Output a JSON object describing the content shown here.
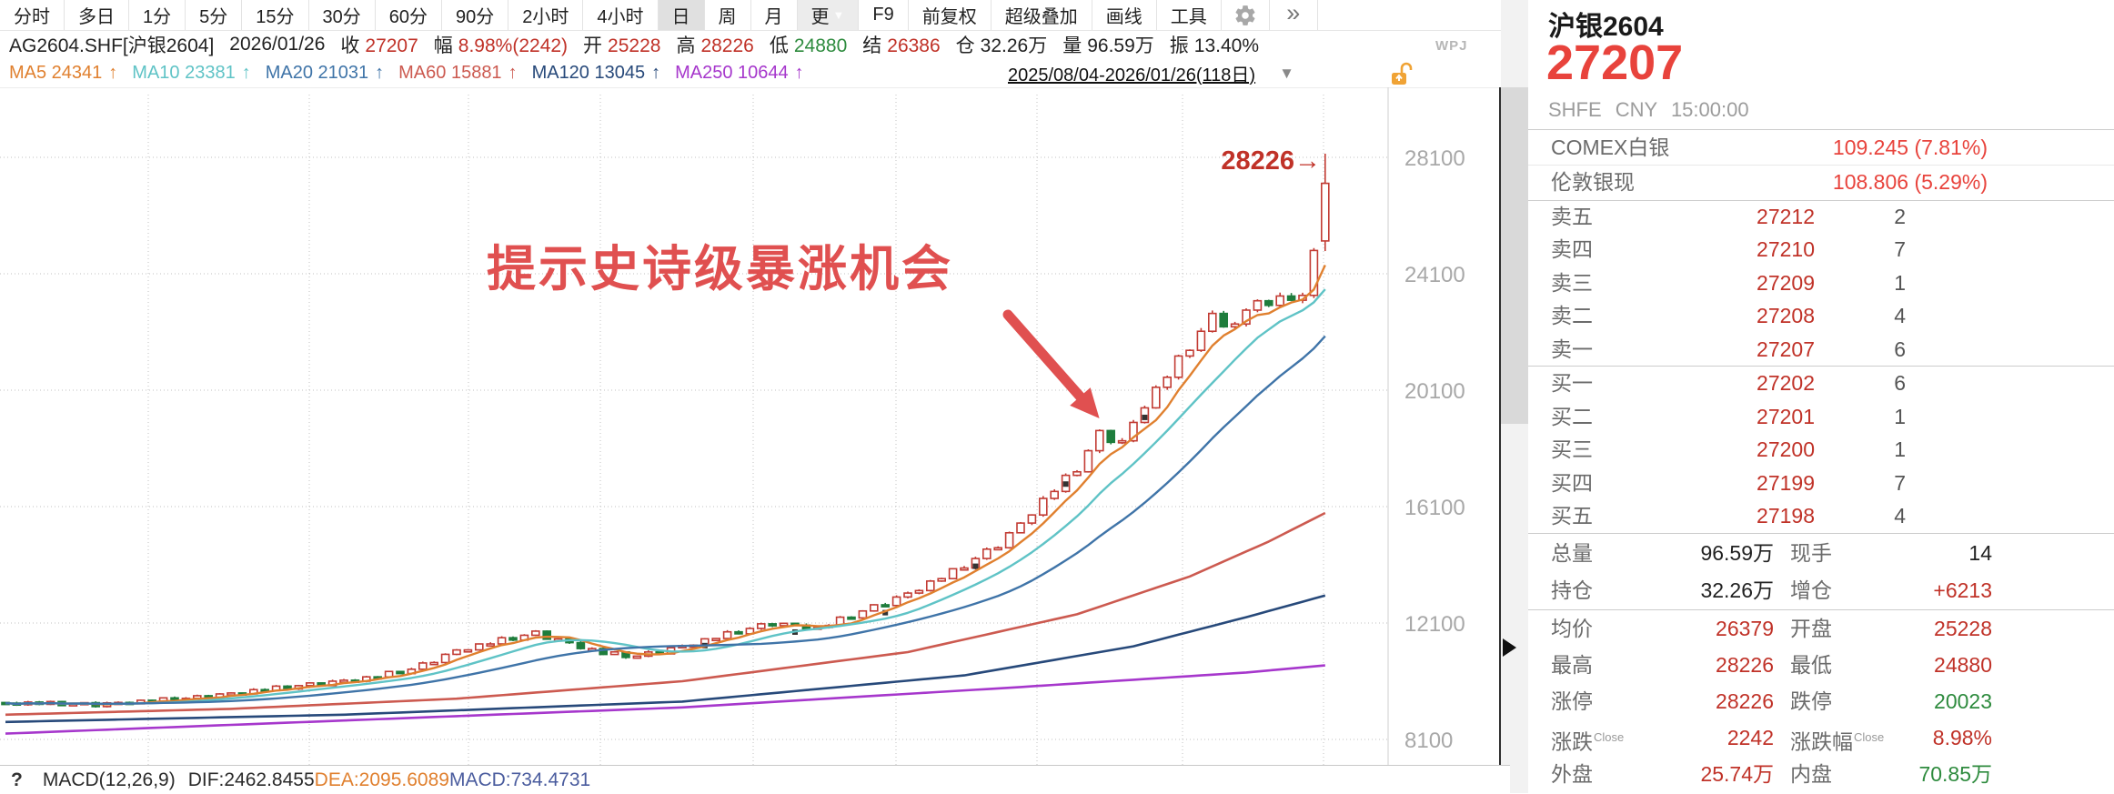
{
  "toolbar": {
    "tabs": [
      {
        "label": "分时"
      },
      {
        "label": "多日"
      },
      {
        "label": "1分"
      },
      {
        "label": "5分"
      },
      {
        "label": "15分"
      },
      {
        "label": "30分"
      },
      {
        "label": "60分"
      },
      {
        "label": "90分"
      },
      {
        "label": "2小时"
      },
      {
        "label": "4小时"
      },
      {
        "label": "日",
        "selected": true
      },
      {
        "label": "周"
      },
      {
        "label": "月"
      },
      {
        "label": "更",
        "dropdown": true
      },
      {
        "label": "F9"
      },
      {
        "label": "前复权"
      },
      {
        "label": "超级叠加"
      },
      {
        "label": "画线"
      },
      {
        "label": "工具"
      }
    ],
    "overflow_icon": "»"
  },
  "info_bar": {
    "symbol": "AG2604.SHF[沪银2604]",
    "date": "2026/01/26",
    "fields": [
      {
        "label": "收",
        "value": "27207",
        "color": "#c03228"
      },
      {
        "label": "幅",
        "value": "8.98%(2242)",
        "color": "#c03228"
      },
      {
        "label": "开",
        "value": "25228",
        "color": "#c03228"
      },
      {
        "label": "高",
        "value": "28226",
        "color": "#c03228"
      },
      {
        "label": "低",
        "value": "24880",
        "color": "#2e8b3e"
      },
      {
        "label": "结",
        "value": "26386",
        "color": "#c03228"
      },
      {
        "label": "仓",
        "value": "32.26万",
        "color": "#222222"
      },
      {
        "label": "量",
        "value": "96.59万",
        "color": "#222222"
      },
      {
        "label": "振",
        "value": "13.40%",
        "color": "#222222"
      }
    ],
    "watermark": "WPJ"
  },
  "ma_bar": {
    "items": [
      {
        "label": "MA5",
        "value": "24341",
        "color": "#e0802f"
      },
      {
        "label": "MA10",
        "value": "23381",
        "color": "#5fc3c6"
      },
      {
        "label": "MA20",
        "value": "21031",
        "color": "#3f74a8"
      },
      {
        "label": "MA60",
        "value": "15881",
        "color": "#cc5a50"
      },
      {
        "label": "MA120",
        "value": "13045",
        "color": "#27497a"
      },
      {
        "label": "MA250",
        "value": "10644",
        "color": "#a637cc"
      }
    ],
    "arrow": "↑",
    "range": "2025/08/04-2026/01/26(118日)",
    "range_dropdown": "▼"
  },
  "macd_bar": {
    "help": "?",
    "items": [
      {
        "text": "MACD(12,26,9)",
        "color": "#2b2b2b",
        "gap": true
      },
      {
        "text": "DIF:2462.8455",
        "color": "#2b2b2b"
      },
      {
        "text": "DEA:2095.6089",
        "color": "#e0802f"
      },
      {
        "text": "MACD:734.4731",
        "color": "#4a5c9e"
      }
    ]
  },
  "quote_panel": {
    "name": "沪银2604",
    "last_price": "27207",
    "exchange_line": "SHFE CNY 15:00:00",
    "externals": [
      {
        "label": "COMEX白银",
        "value": "109.245 (7.81%)",
        "color": "#e8433c"
      },
      {
        "label": "伦敦银现",
        "value": "108.806 (5.29%)",
        "color": "#e8433c"
      }
    ],
    "asks": [
      {
        "label": "卖五",
        "price": "27212",
        "qty": "2"
      },
      {
        "label": "卖四",
        "price": "27210",
        "qty": "7"
      },
      {
        "label": "卖三",
        "price": "27209",
        "qty": "1"
      },
      {
        "label": "卖二",
        "price": "27208",
        "qty": "4"
      },
      {
        "label": "卖一",
        "price": "27207",
        "qty": "6"
      }
    ],
    "bids": [
      {
        "label": "买一",
        "price": "27202",
        "qty": "6"
      },
      {
        "label": "买二",
        "price": "27201",
        "qty": "1"
      },
      {
        "label": "买三",
        "price": "27200",
        "qty": "1"
      },
      {
        "label": "买四",
        "price": "27199",
        "qty": "7"
      },
      {
        "label": "买五",
        "price": "27198",
        "qty": "4"
      }
    ],
    "price_color": "#c03228",
    "stats_top": [
      {
        "l1": "总量",
        "v1": "96.59万",
        "c1": "#222222",
        "l2": "现手",
        "v2": "14",
        "c2": "#222222"
      },
      {
        "l1": "持仓",
        "v1": "32.26万",
        "c1": "#222222",
        "l2": "增仓",
        "v2": "+6213",
        "c2": "#c03228"
      }
    ],
    "stats_bottom": [
      {
        "l1": "均价",
        "v1": "26379",
        "c1": "#c03228",
        "l2": "开盘",
        "v2": "25228",
        "c2": "#c03228"
      },
      {
        "l1": "最高",
        "v1": "28226",
        "c1": "#c03228",
        "l2": "最低",
        "v2": "24880",
        "c2": "#c03228"
      },
      {
        "l1": "涨停",
        "v1": "28226",
        "c1": "#c03228",
        "l2": "跌停",
        "v2": "20023",
        "c2": "#2e8b3e"
      },
      {
        "l1": "涨跌",
        "s1": "Close",
        "v1": "2242",
        "c1": "#c03228",
        "l2": "涨跌幅",
        "s2": "Close",
        "v2": "8.98%",
        "c2": "#c03228"
      },
      {
        "l1": "外盘",
        "v1": "25.74万",
        "c1": "#c03228",
        "l2": "内盘",
        "v2": "70.85万",
        "c2": "#2e8b3e"
      }
    ]
  },
  "chart_data": {
    "type": "candlestick",
    "symbol": "AG2604.SHF",
    "period": "日",
    "bars": 118,
    "date_range": "2025/08/04-2026/01/26",
    "y_ticks": [
      28100,
      24100,
      20100,
      16100,
      12100,
      8100
    ],
    "close_anchors": [
      [
        0,
        9350
      ],
      [
        8,
        9300
      ],
      [
        16,
        9500
      ],
      [
        24,
        9850
      ],
      [
        32,
        10200
      ],
      [
        36,
        10500
      ],
      [
        40,
        11150
      ],
      [
        44,
        11500
      ],
      [
        47,
        11750
      ],
      [
        50,
        11400
      ],
      [
        53,
        11050
      ],
      [
        56,
        10950
      ],
      [
        60,
        11300
      ],
      [
        64,
        11700
      ],
      [
        68,
        12100
      ],
      [
        72,
        11900
      ],
      [
        76,
        12500
      ],
      [
        80,
        13100
      ],
      [
        84,
        13850
      ],
      [
        86,
        14300
      ],
      [
        88,
        14800
      ],
      [
        90,
        15500
      ],
      [
        92,
        16300
      ],
      [
        95,
        17400
      ],
      [
        97,
        18600
      ],
      [
        99,
        18300
      ],
      [
        101,
        19600
      ],
      [
        103,
        20600
      ],
      [
        105,
        21600
      ],
      [
        107,
        22600
      ],
      [
        109,
        22300
      ],
      [
        111,
        23300
      ],
      [
        112,
        22900
      ],
      [
        113,
        23400
      ],
      [
        114,
        23000
      ],
      [
        115,
        23500
      ],
      [
        116,
        24900
      ],
      [
        117,
        27207
      ]
    ],
    "last_candle": {
      "open": 25228,
      "high": 28226,
      "low": 24880,
      "close": 27207
    },
    "ma_rolling": [
      {
        "name": "MA5",
        "window": 5,
        "color": "#e0802f"
      },
      {
        "name": "MA10",
        "window": 10,
        "color": "#5fc3c6"
      },
      {
        "name": "MA20",
        "window": 20,
        "color": "#3f74a8"
      }
    ],
    "ma_anchor_series": [
      {
        "name": "MA60",
        "color": "#cc5a50",
        "anchors": [
          [
            0,
            8950
          ],
          [
            20,
            9150
          ],
          [
            40,
            9500
          ],
          [
            60,
            10100
          ],
          [
            80,
            11100
          ],
          [
            95,
            12400
          ],
          [
            105,
            13700
          ],
          [
            112,
            14900
          ],
          [
            117,
            15881
          ]
        ]
      },
      {
        "name": "MA120",
        "color": "#27497a",
        "anchors": [
          [
            0,
            8700
          ],
          [
            30,
            8950
          ],
          [
            60,
            9400
          ],
          [
            85,
            10300
          ],
          [
            100,
            11300
          ],
          [
            110,
            12300
          ],
          [
            117,
            13045
          ]
        ]
      },
      {
        "name": "MA250",
        "color": "#a637cc",
        "anchors": [
          [
            0,
            8300
          ],
          [
            30,
            8750
          ],
          [
            60,
            9200
          ],
          [
            90,
            9900
          ],
          [
            110,
            10400
          ],
          [
            117,
            10644
          ]
        ]
      }
    ],
    "up_color": "#c23b33",
    "down_color": "#1e7d3c",
    "grid_color": "#c0c0c0",
    "axis_text_color": "#a8a8a8",
    "annotation": {
      "text": "提示史诗级暴涨机会",
      "color": "#e05050"
    },
    "high_label": {
      "text": "28226→",
      "color": "#c03228",
      "price": 28226
    }
  }
}
